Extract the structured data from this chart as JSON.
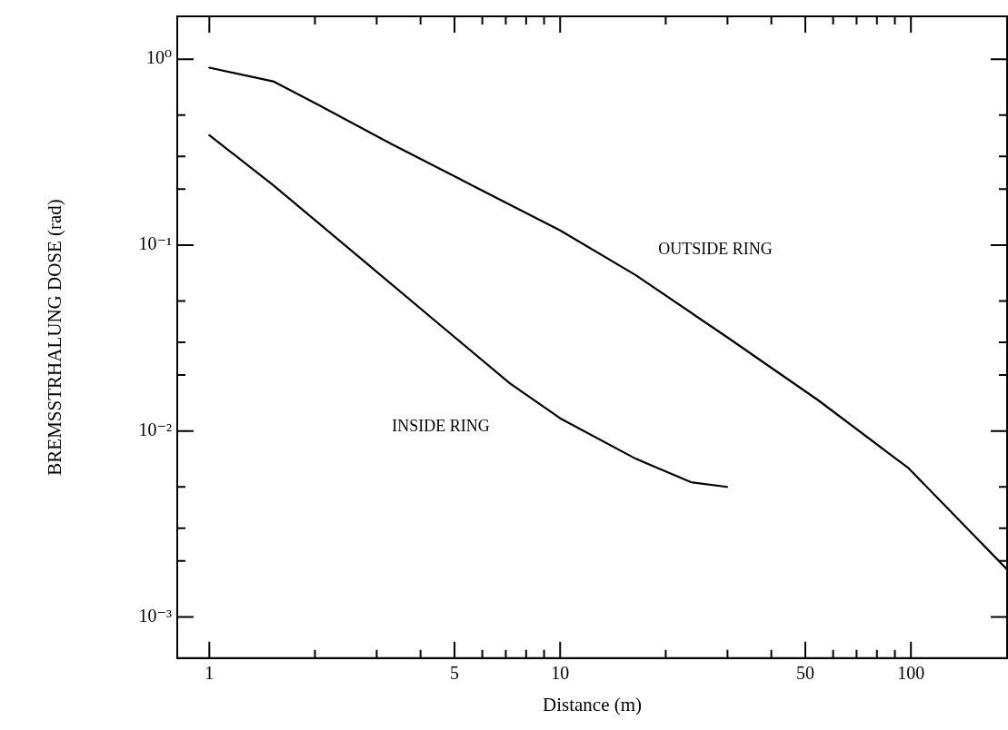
{
  "chart_data": {
    "type": "line",
    "xlabel": "Distance (m)",
    "ylabel": "BREMSSTRHALUNG DOSE (rad)",
    "log": "xy",
    "grid": false,
    "legend": false,
    "marker": "none",
    "line_style": "solid",
    "xlim": [
      0.81,
      188
    ],
    "ylim": [
      0.00062,
      1.7
    ],
    "xticks": [
      {
        "value": 1,
        "label": "1"
      },
      {
        "value": 2,
        "label": null
      },
      {
        "value": 3,
        "label": null
      },
      {
        "value": 4,
        "label": null
      },
      {
        "value": 5,
        "label": "5"
      },
      {
        "value": 6,
        "label": null
      },
      {
        "value": 7,
        "label": null
      },
      {
        "value": 8,
        "label": null
      },
      {
        "value": 9,
        "label": null
      },
      {
        "value": 10,
        "label": "10"
      },
      {
        "value": 20,
        "label": null
      },
      {
        "value": 30,
        "label": null
      },
      {
        "value": 40,
        "label": null
      },
      {
        "value": 50,
        "label": "50"
      },
      {
        "value": 60,
        "label": null
      },
      {
        "value": 70,
        "label": null
      },
      {
        "value": 80,
        "label": null
      },
      {
        "value": 90,
        "label": null
      },
      {
        "value": 100,
        "label": "100"
      }
    ],
    "yticks": [
      {
        "value": 0.001,
        "label": "10⁻³"
      },
      {
        "value": 0.002,
        "label": null
      },
      {
        "value": 0.003,
        "label": null
      },
      {
        "value": 0.005,
        "label": null
      },
      {
        "value": 0.01,
        "label": "10⁻²"
      },
      {
        "value": 0.02,
        "label": null
      },
      {
        "value": 0.03,
        "label": null
      },
      {
        "value": 0.05,
        "label": null
      },
      {
        "value": 0.1,
        "label": "10⁻¹"
      },
      {
        "value": 0.2,
        "label": null
      },
      {
        "value": 0.3,
        "label": null
      },
      {
        "value": 0.5,
        "label": null
      },
      {
        "value": 1,
        "label": "10⁰"
      }
    ],
    "series": [
      {
        "name": "OUTSIDE RING",
        "color": "#000000",
        "x": [
          1,
          1.52,
          2.04,
          3.3,
          5.6,
          10,
          16.4,
          29.9,
          54.5,
          98.5,
          188
        ],
        "values": [
          0.9,
          0.76,
          0.57,
          0.35,
          0.21,
          0.12,
          0.069,
          0.032,
          0.0146,
          0.0063,
          0.0018
        ]
      },
      {
        "name": "INSIDE RING",
        "color": "#000000",
        "x": [
          1,
          1.52,
          2.76,
          5.0,
          7.2,
          10,
          16.4,
          23.6,
          29.9
        ],
        "values": [
          0.39,
          0.21,
          0.082,
          0.032,
          0.018,
          0.0117,
          0.0071,
          0.0053,
          0.005
        ]
      }
    ]
  }
}
